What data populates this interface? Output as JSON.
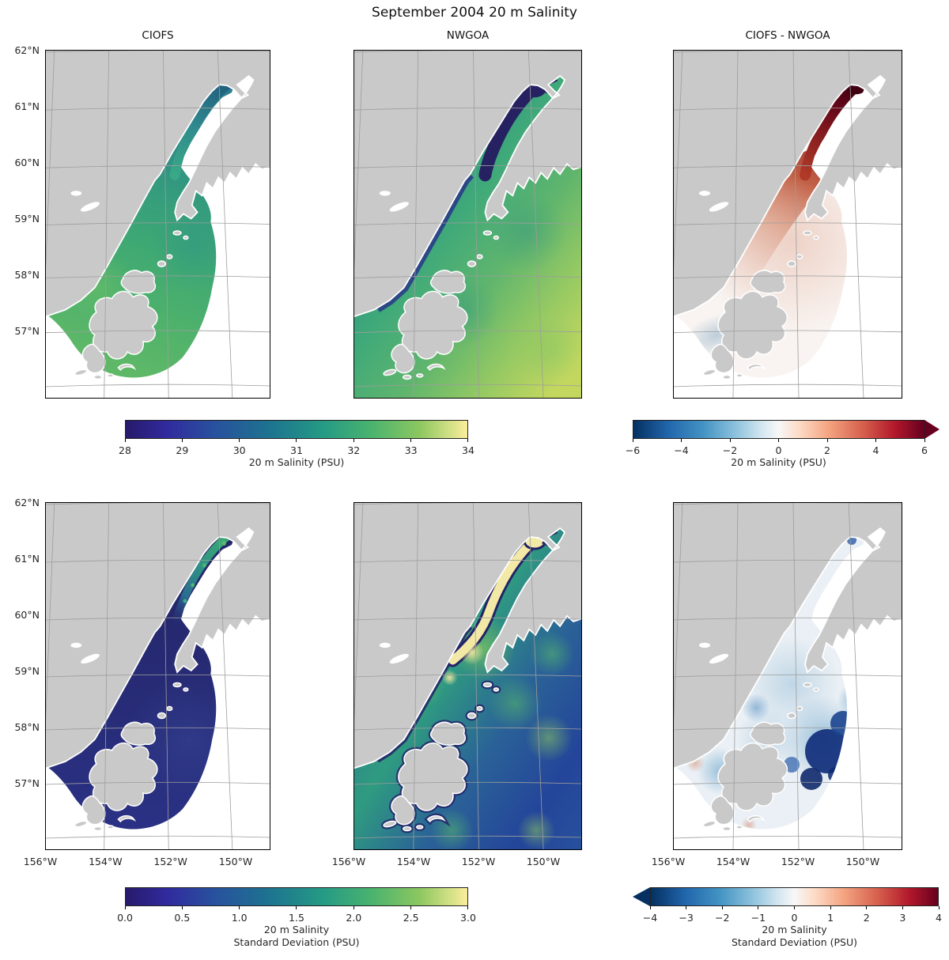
{
  "figure_title": "September 2004 20 m Salinity",
  "panel_titles": {
    "left": "CIOFS",
    "middle": "NWGOA",
    "right": "CIOFS - NWGOA"
  },
  "axes": {
    "lat_ticks": [
      "62°N",
      "61°N",
      "60°N",
      "59°N",
      "58°N",
      "57°N"
    ],
    "lon_ticks": [
      "156°W",
      "154°W",
      "152°W",
      "150°W"
    ]
  },
  "colorbars": {
    "salinity": {
      "label": "20 m Salinity (PSU)",
      "ticks": [
        "28",
        "29",
        "30",
        "31",
        "32",
        "33",
        "34"
      ],
      "vmin": 28,
      "vmax": 34,
      "colormap": "haline",
      "extend": "neither"
    },
    "salinity_diff": {
      "label": "20 m Salinity (PSU)",
      "ticks": [
        "−6",
        "−4",
        "−2",
        "0",
        "2",
        "4",
        "6"
      ],
      "vmin": -6,
      "vmax": 6,
      "colormap": "RdBu_r",
      "extend": "max"
    },
    "std": {
      "label": "20 m Salinity\nStandard Deviation (PSU)",
      "ticks": [
        "0.0",
        "0.5",
        "1.0",
        "1.5",
        "2.0",
        "2.5",
        "3.0"
      ],
      "vmin": 0,
      "vmax": 3,
      "colormap": "haline",
      "extend": "neither"
    },
    "std_diff": {
      "label": "20 m Salinity\nStandard Deviation (PSU)",
      "ticks": [
        "−4",
        "−3",
        "−2",
        "−1",
        "0",
        "1",
        "2",
        "3",
        "4"
      ],
      "vmin": -4,
      "vmax": 4,
      "colormap": "RdBu_r",
      "extend": "min"
    }
  },
  "chart_data": [
    {
      "type": "heatmap",
      "panel": "top-left",
      "title": "CIOFS",
      "variable": "20 m Salinity (PSU)",
      "colormap": "haline",
      "vmin": 28,
      "vmax": 34,
      "lat_range": [
        "57°N",
        "62°N"
      ],
      "lon_range": [
        "156°W",
        "150°W"
      ],
      "description": "Fan-shaped CIOFS model domain over Cook Inlet and Shelikof Strait; teal ~29.5–30.5 PSU in the upper inlet channel, green ~31–32 PSU across the lower inlet and shelf around Kodiak Island."
    },
    {
      "type": "heatmap",
      "panel": "top-middle",
      "title": "NWGOA",
      "variable": "20 m Salinity (PSU)",
      "colormap": "haline",
      "vmin": 28,
      "vmax": 34,
      "lat_range": [
        "57°N",
        "62°N"
      ],
      "lon_range": [
        "156°W",
        "150°W"
      ],
      "description": "Full-field NWGOA salinity; dark navy <28.5 PSU in upper Cook Inlet and along the west coast, grading through teal ~31 PSU to yellow-green ~33–34 PSU in the open Gulf of Alaska to the southeast."
    },
    {
      "type": "heatmap",
      "panel": "top-right",
      "title": "CIOFS - NWGOA",
      "variable": "20 m Salinity difference (PSU)",
      "colormap": "RdBu_r",
      "vmin": -6,
      "vmax": 6,
      "extend": "max",
      "lat_range": [
        "57°N",
        "62°N"
      ],
      "lon_range": [
        "156°W",
        "150°W"
      ],
      "description": "CIOFS minus NWGOA; dark maroon up to +6 PSU in upper Cook Inlet, red plume +1 to +4 PSU down the western inlet, near 0 (white) over most of the shelf, weak negative (light blue) at the southwestern domain edge."
    },
    {
      "type": "heatmap",
      "panel": "bottom-left",
      "title": "CIOFS standard deviation",
      "variable": "20 m Salinity Standard Deviation (PSU)",
      "colormap": "haline",
      "vmin": 0,
      "vmax": 3,
      "lat_range": [
        "57°N",
        "62°N"
      ],
      "lon_range": [
        "156°W",
        "150°W"
      ],
      "description": "CIOFS std. dev.; mostly dark navy ~0–0.3 PSU across the domain with teal-green streaks ~1–2 PSU along the upper inlet channel."
    },
    {
      "type": "heatmap",
      "panel": "bottom-middle",
      "title": "NWGOA standard deviation",
      "variable": "20 m Salinity Standard Deviation (PSU)",
      "colormap": "haline",
      "vmin": 0,
      "vmax": 3,
      "lat_range": [
        "57°N",
        "62°N"
      ],
      "lon_range": [
        "156°W",
        "150°W"
      ],
      "description": "NWGOA std. dev.; mottled blue-green 0.5–2 PSU over the shelf, pale yellow ~3 PSU filling the upper inlet channel, navy ~0 PSU fringing the coasts."
    },
    {
      "type": "heatmap",
      "panel": "bottom-right",
      "title": "CIOFS - NWGOA standard deviation difference",
      "variable": "20 m Salinity Standard Deviation difference (PSU)",
      "colormap": "RdBu_r",
      "vmin": -4,
      "vmax": 4,
      "extend": "min",
      "lat_range": [
        "57°N",
        "62°N"
      ],
      "lon_range": [
        "156°W",
        "150°W"
      ],
      "description": "Difference of std. dev.; mostly light blue −0.5 to −1.5 PSU over the domain, dark navy patches to −4 PSU southeast of Kodiak, scattered red pixels up to +2 PSU in the upper inlet."
    }
  ]
}
